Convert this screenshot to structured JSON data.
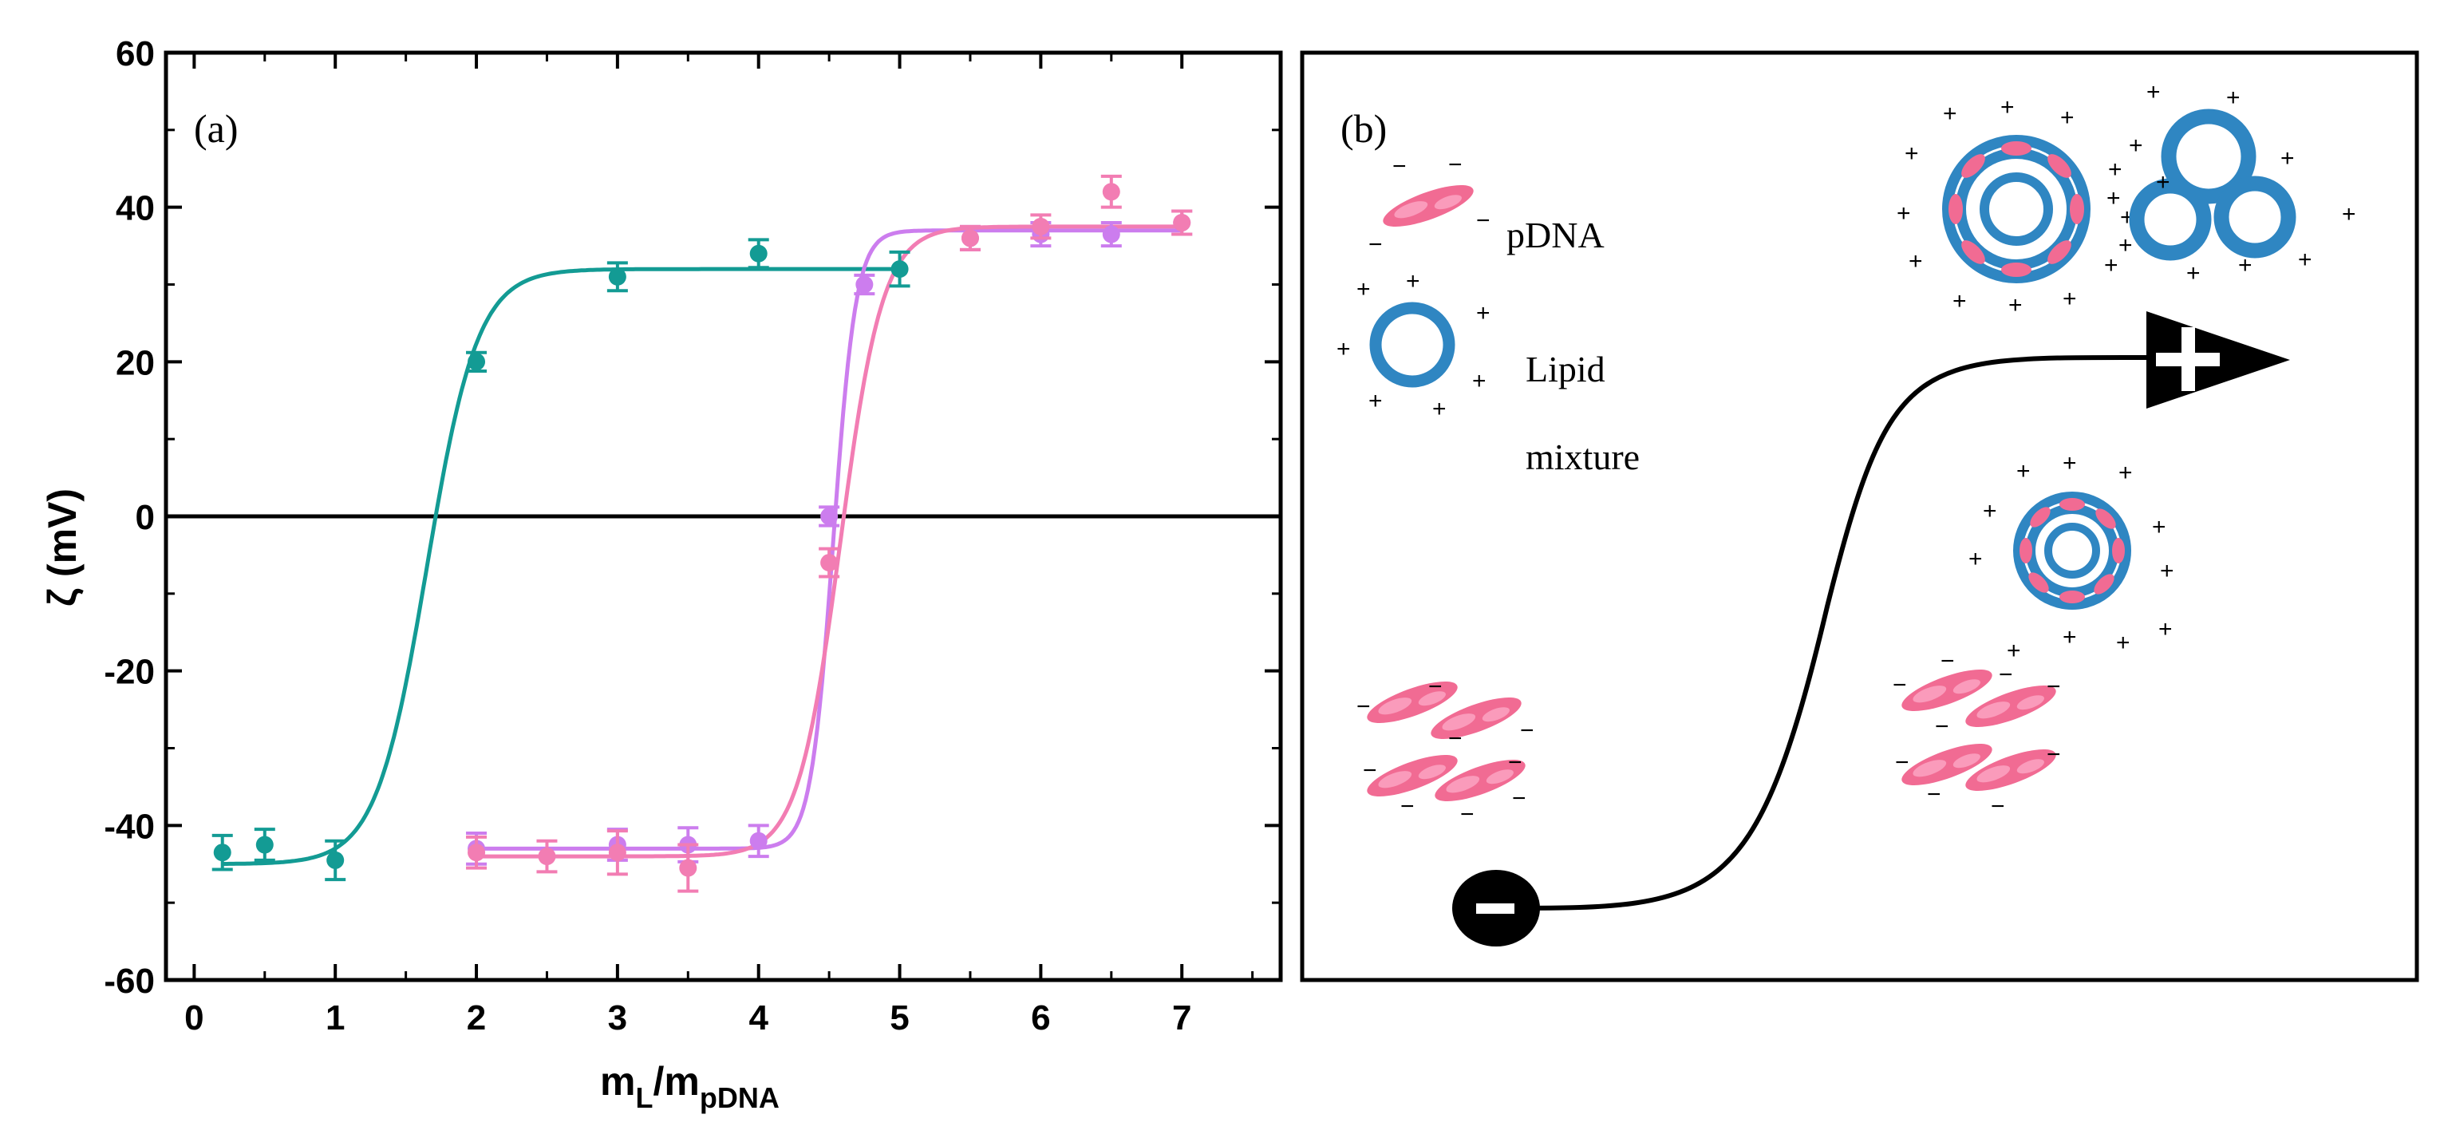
{
  "chart_data": {
    "type": "scatter",
    "panel_label": "(a)",
    "ylabel": "ζ (mV)",
    "xlabel": {
      "main": "m",
      "sub1": "L",
      "sep": "/m",
      "sub2": "pDNA"
    },
    "xlim": [
      -0.2,
      7.7
    ],
    "ylim": [
      -60,
      60
    ],
    "xticks": [
      0,
      1,
      2,
      3,
      4,
      5,
      6,
      7
    ],
    "yticks": [
      60,
      40,
      20,
      0,
      -20,
      -40,
      -60
    ],
    "zero_line": true,
    "series": [
      {
        "name": "teal",
        "color": "#139b94",
        "x": [
          0.2,
          0.5,
          1,
          2,
          3,
          4,
          5
        ],
        "y": [
          -43.5,
          -42.5,
          -44.5,
          20,
          31,
          34,
          32
        ],
        "err": [
          2.2,
          2.0,
          2.5,
          1.2,
          1.8,
          1.8,
          2.2
        ],
        "fit": {
          "bottom": -45,
          "top": 32,
          "x0": 1.65,
          "dx": 0.18
        }
      },
      {
        "name": "violet",
        "color": "#cc7dee",
        "x": [
          2,
          3,
          3.5,
          4,
          4.5,
          4.75,
          5.5,
          6,
          6.5,
          7
        ],
        "y": [
          -43,
          -42.5,
          -42.5,
          -42,
          0,
          30,
          36,
          36.5,
          36.5,
          38
        ],
        "err": [
          2.0,
          2.0,
          2.2,
          2.0,
          1.2,
          1.2,
          1.5,
          1.5,
          1.5,
          1.5
        ],
        "fit": {
          "bottom": -43,
          "top": 37,
          "x0": 4.53,
          "dx": 0.08
        }
      },
      {
        "name": "pink",
        "color": "#f27db3",
        "x": [
          2,
          2.5,
          3,
          3.5,
          4.5,
          5.5,
          6,
          6.5,
          7
        ],
        "y": [
          -43.5,
          -44,
          -43.5,
          -45.5,
          -6,
          36,
          37.5,
          42,
          38
        ],
        "err": [
          2.0,
          2.0,
          2.8,
          3.0,
          1.8,
          1.5,
          1.5,
          2.0,
          1.5
        ],
        "fit": {
          "bottom": -44,
          "top": 37.5,
          "x0": 4.58,
          "dx": 0.15
        }
      }
    ]
  },
  "schematic": {
    "panel_label": "(b)",
    "legend": [
      {
        "label": "pDNA"
      },
      {
        "label": "Lipid"
      },
      {
        "label": "mixture"
      }
    ],
    "colors": {
      "lipid": "#2f86c2",
      "dna": "#f16b93"
    }
  }
}
